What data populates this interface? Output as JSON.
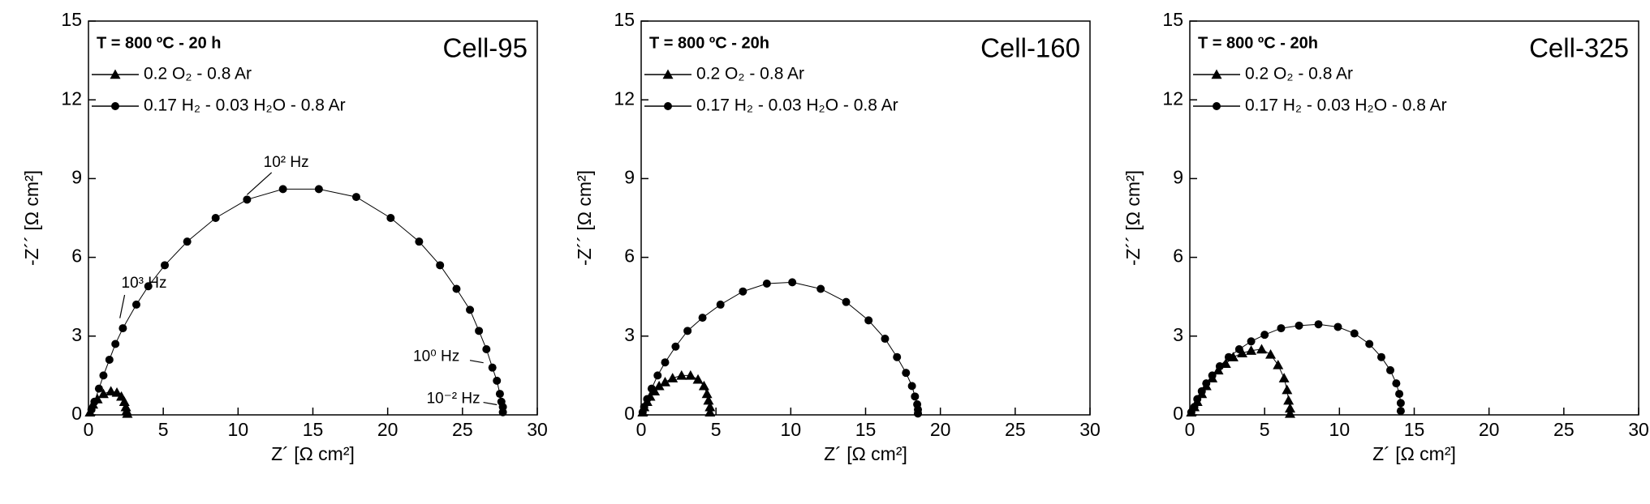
{
  "chart_data": [
    {
      "type": "scatter",
      "title": "Cell-95",
      "subtitle": "T = 800 ºC - 20 h",
      "xlabel": "Z´ [Ω cm²]",
      "ylabel": "-Z´´ [Ω cm²]",
      "xlim": [
        0,
        30
      ],
      "ylim": [
        0,
        15
      ],
      "xticks": [
        0,
        5,
        10,
        15,
        20,
        25,
        30
      ],
      "yticks": [
        0,
        3,
        6,
        9,
        12,
        15
      ],
      "annotations": [
        "10² Hz",
        "10³ Hz",
        "10⁰ Hz",
        "10⁻² Hz"
      ],
      "series": [
        {
          "name": "0.2 O₂ - 0.8 Ar",
          "color": "#000000",
          "marker": "triangle",
          "x": [
            0.1,
            0.3,
            0.6,
            1.0,
            1.5,
            1.9,
            2.2,
            2.4,
            2.5,
            2.55,
            2.6
          ],
          "values": [
            0.1,
            0.4,
            0.6,
            0.8,
            0.9,
            0.85,
            0.7,
            0.5,
            0.3,
            0.15,
            0.05
          ]
        },
        {
          "name": "0.17 H₂ - 0.03 H₂O - 0.8 Ar",
          "color": "#000000",
          "marker": "circle",
          "x": [
            0.2,
            0.4,
            0.7,
            1.0,
            1.4,
            1.8,
            2.3,
            3.2,
            4.0,
            5.1,
            6.6,
            8.5,
            10.6,
            13.0,
            15.4,
            17.9,
            20.2,
            22.1,
            23.5,
            24.6,
            25.5,
            26.1,
            26.6,
            27.0,
            27.3,
            27.5,
            27.6,
            27.7,
            27.7
          ],
          "values": [
            0.2,
            0.5,
            1.0,
            1.5,
            2.1,
            2.7,
            3.3,
            4.2,
            4.9,
            5.7,
            6.6,
            7.5,
            8.2,
            8.6,
            8.6,
            8.3,
            7.5,
            6.6,
            5.7,
            4.8,
            4.0,
            3.2,
            2.5,
            1.8,
            1.3,
            0.8,
            0.5,
            0.3,
            0.1
          ]
        }
      ]
    },
    {
      "type": "scatter",
      "title": "Cell-160",
      "subtitle": "T = 800 ºC - 20h",
      "xlabel": "Z´ [Ω cm²]",
      "ylabel": "-Z´´ [Ω cm²]",
      "xlim": [
        0,
        30
      ],
      "ylim": [
        0,
        15
      ],
      "xticks": [
        0,
        5,
        10,
        15,
        20,
        25,
        30
      ],
      "yticks": [
        0,
        3,
        6,
        9,
        12,
        15
      ],
      "series": [
        {
          "name": "0.2 O₂ - 0.8 Ar",
          "color": "#000000",
          "marker": "triangle",
          "x": [
            0.1,
            0.2,
            0.4,
            0.6,
            0.9,
            1.2,
            1.6,
            2.1,
            2.7,
            3.3,
            3.8,
            4.2,
            4.4,
            4.5,
            4.6,
            4.6
          ],
          "values": [
            0.1,
            0.3,
            0.5,
            0.7,
            0.9,
            1.1,
            1.25,
            1.4,
            1.5,
            1.5,
            1.35,
            1.1,
            0.8,
            0.55,
            0.3,
            0.1
          ]
        },
        {
          "name": "0.17 H₂ - 0.03 H₂O - 0.8 Ar",
          "color": "#000000",
          "marker": "circle",
          "x": [
            0.1,
            0.2,
            0.4,
            0.7,
            1.1,
            1.6,
            2.3,
            3.1,
            4.1,
            5.3,
            6.8,
            8.4,
            10.1,
            12.0,
            13.7,
            15.2,
            16.3,
            17.1,
            17.7,
            18.1,
            18.3,
            18.45,
            18.5,
            18.5
          ],
          "values": [
            0.1,
            0.3,
            0.6,
            1.0,
            1.5,
            2.0,
            2.6,
            3.2,
            3.7,
            4.2,
            4.7,
            5.0,
            5.05,
            4.8,
            4.3,
            3.6,
            2.9,
            2.2,
            1.6,
            1.1,
            0.7,
            0.4,
            0.2,
            0.05
          ]
        }
      ]
    },
    {
      "type": "scatter",
      "title": "Cell-325",
      "subtitle": "T = 800 ºC - 20h",
      "xlabel": "Z´ [Ω cm²]",
      "ylabel": "-Z´´ [Ω cm²]",
      "xlim": [
        0,
        30
      ],
      "ylim": [
        0,
        15
      ],
      "xticks": [
        0,
        5,
        10,
        15,
        20,
        25,
        30
      ],
      "yticks": [
        0,
        3,
        6,
        9,
        12,
        15
      ],
      "series": [
        {
          "name": "0.2 O₂ - 0.8 Ar",
          "color": "#000000",
          "marker": "triangle",
          "x": [
            0.1,
            0.3,
            0.5,
            0.8,
            1.1,
            1.5,
            1.9,
            2.4,
            2.9,
            3.5,
            4.1,
            4.8,
            5.4,
            5.9,
            6.3,
            6.5,
            6.6,
            6.7,
            6.7
          ],
          "values": [
            0.1,
            0.3,
            0.5,
            0.8,
            1.1,
            1.4,
            1.7,
            1.95,
            2.2,
            2.35,
            2.45,
            2.5,
            2.3,
            1.9,
            1.4,
            0.95,
            0.55,
            0.25,
            0.05
          ]
        },
        {
          "name": "0.17 H₂ - 0.03 H₂O - 0.8 Ar",
          "color": "#000000",
          "marker": "circle",
          "x": [
            0.1,
            0.3,
            0.5,
            0.8,
            1.1,
            1.5,
            2.0,
            2.6,
            3.3,
            4.1,
            5.0,
            6.1,
            7.3,
            8.6,
            9.9,
            11.0,
            12.0,
            12.8,
            13.4,
            13.8,
            14.0,
            14.1,
            14.1
          ],
          "values": [
            0.1,
            0.3,
            0.6,
            0.9,
            1.2,
            1.5,
            1.85,
            2.2,
            2.5,
            2.8,
            3.05,
            3.3,
            3.4,
            3.45,
            3.35,
            3.1,
            2.7,
            2.2,
            1.7,
            1.2,
            0.8,
            0.45,
            0.15
          ]
        }
      ]
    }
  ]
}
